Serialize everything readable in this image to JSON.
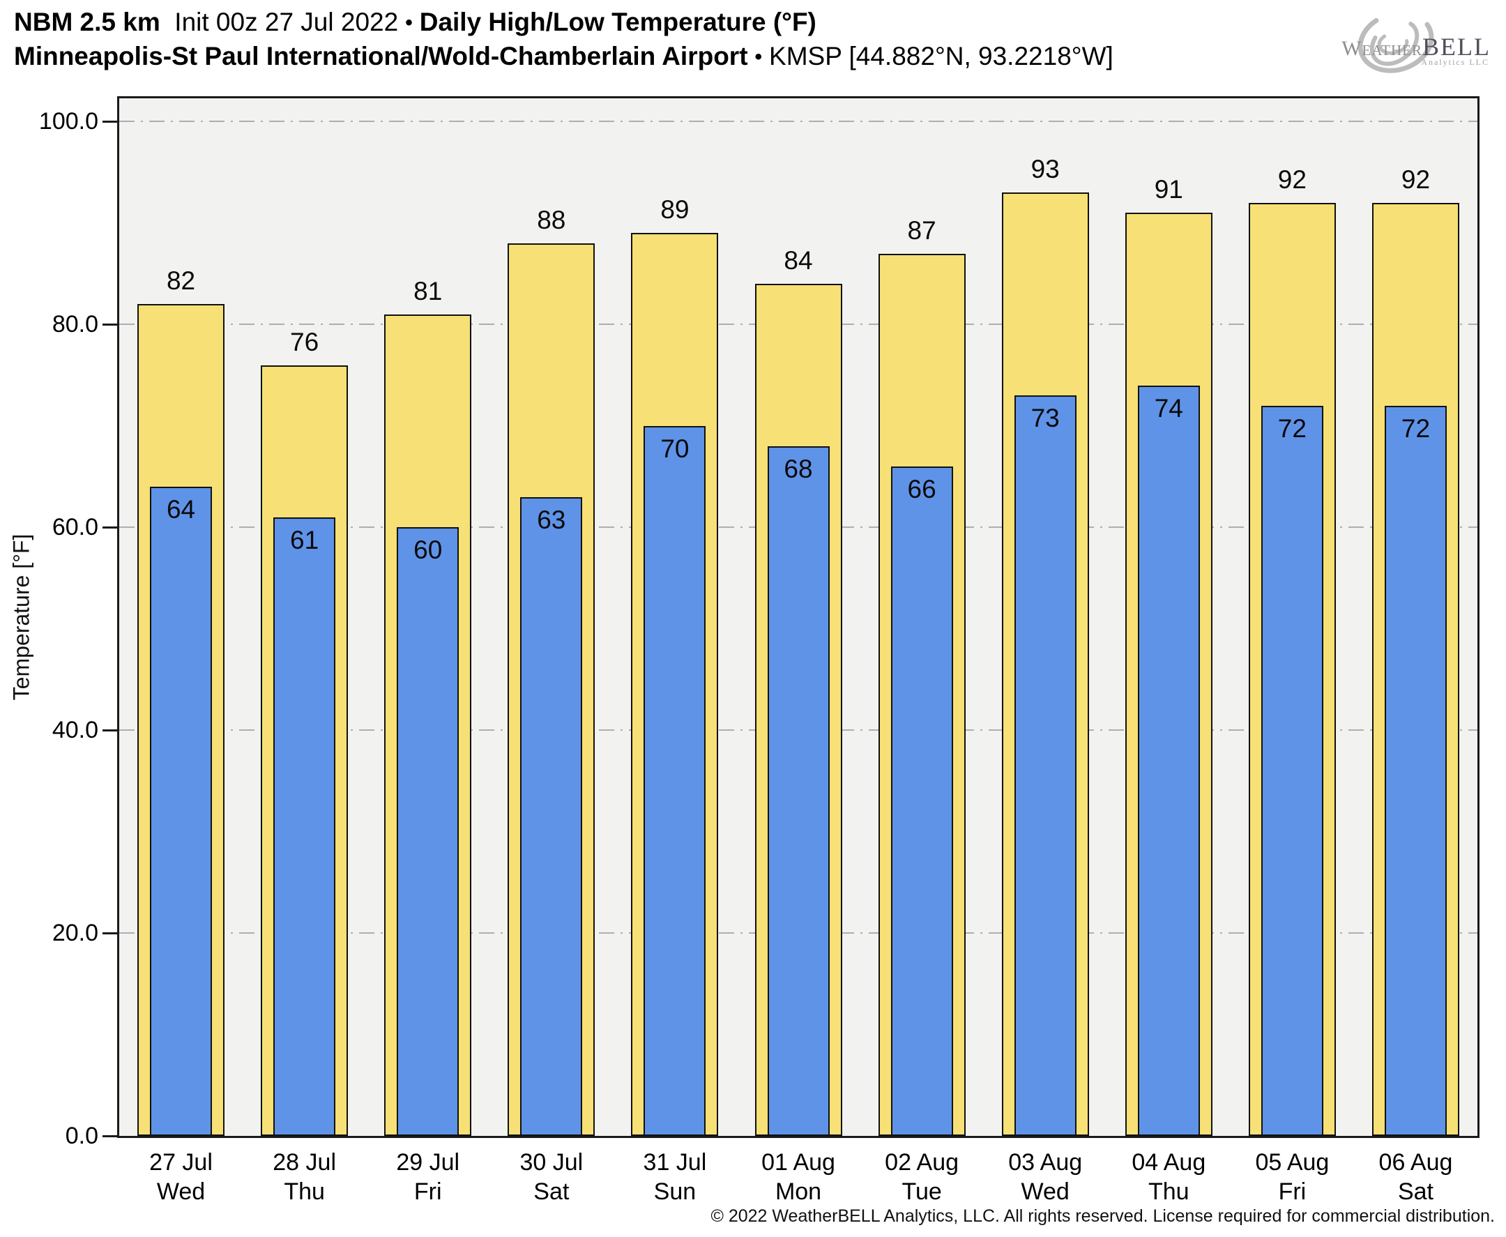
{
  "header": {
    "model": "NBM 2.5 km",
    "init": "Init 00z 27 Jul 2022",
    "separator": "•",
    "product": "Daily High/Low Temperature (°F)",
    "station": "Minneapolis-St Paul International/Wold-Chamberlain Airport",
    "station_id": "KMSP [44.882°N, 93.2218°W]"
  },
  "logo": {
    "name": "weatherbell-logo",
    "word_left": "Weather",
    "word_right": "BELL",
    "subtext": "Analytics LLC"
  },
  "chart_data": {
    "type": "bar",
    "title": "NBM 2.5 km Init 00z 27 Jul 2022 • Daily High/Low Temperature (°F)",
    "subtitle": "Minneapolis-St Paul International/Wold-Chamberlain Airport • KMSP [44.882°N, 93.2218°W]",
    "xlabel": "",
    "ylabel": "Temperature [°F]",
    "ylim": [
      0,
      102.3
    ],
    "yticks": [
      0,
      20,
      40,
      60,
      80,
      100
    ],
    "ytick_labels": [
      "0.0",
      "20.0",
      "40.0",
      "60.0",
      "80.0",
      "100.0"
    ],
    "grid": "horizontal dash-dot gridlines at each 20°F",
    "legend_position": "none",
    "categories_date": [
      "27 Jul",
      "28 Jul",
      "29 Jul",
      "30 Jul",
      "31 Jul",
      "01 Aug",
      "02 Aug",
      "03 Aug",
      "04 Aug",
      "05 Aug",
      "06 Aug"
    ],
    "categories_day": [
      "Wed",
      "Thu",
      "Fri",
      "Sat",
      "Sun",
      "Mon",
      "Tue",
      "Wed",
      "Thu",
      "Fri",
      "Sat"
    ],
    "series": [
      {
        "name": "Daily High (°F)",
        "color": "#f7e075",
        "values": [
          82,
          76,
          81,
          88,
          89,
          84,
          87,
          93,
          91,
          92,
          92
        ]
      },
      {
        "name": "Daily Low (°F)",
        "color": "#5f93e8",
        "values": [
          64,
          61,
          60,
          63,
          70,
          68,
          66,
          73,
          74,
          72,
          72
        ]
      }
    ]
  },
  "colors": {
    "high_bar": "#f7e075",
    "low_bar": "#5f93e8",
    "bar_border": "#111111",
    "plot_background": "#f2f2f0",
    "gridline": "#aeaeae",
    "axis": "#1a1a1a"
  },
  "footer": {
    "copyright": "© 2022 WeatherBELL Analytics, LLC. All rights reserved. License required for commercial distribution."
  }
}
